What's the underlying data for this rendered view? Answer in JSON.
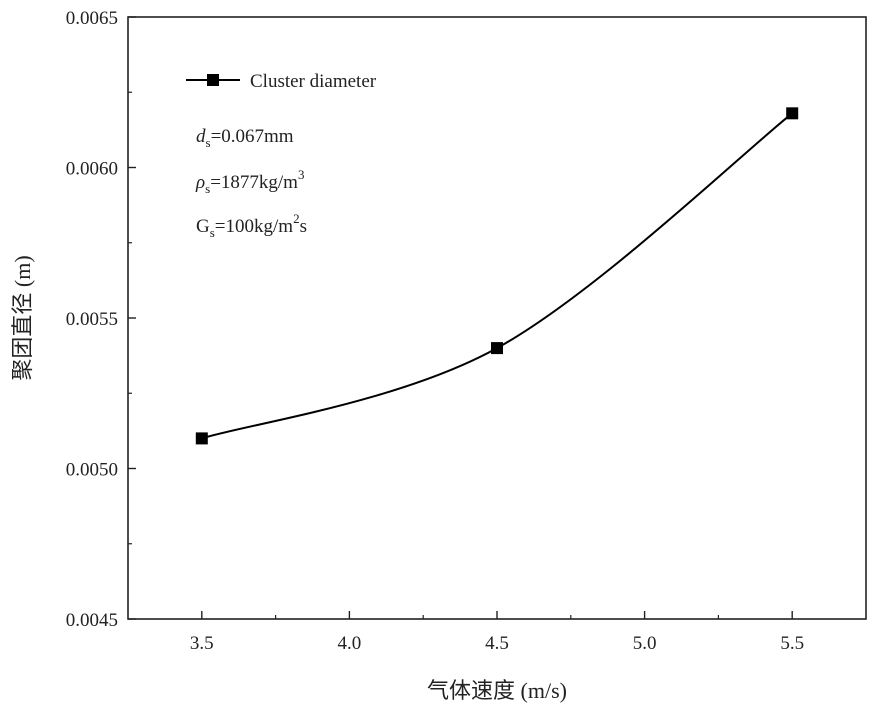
{
  "chart_data": {
    "type": "line",
    "xlabel": "气体速度 (m/s)",
    "ylabel": "聚团直径 (m)",
    "xlim": [
      3.25,
      5.75
    ],
    "ylim": [
      0.0045,
      0.0065
    ],
    "x_ticks": [
      "3.5",
      "4.0",
      "4.5",
      "5.0",
      "5.5"
    ],
    "y_ticks": [
      "0.0045",
      "0.0050",
      "0.0055",
      "0.0060",
      "0.0065"
    ],
    "grid": false,
    "legend_position": "top-left",
    "series": [
      {
        "name": "Cluster diameter",
        "x": [
          3.5,
          4.5,
          5.5
        ],
        "y": [
          0.0051,
          0.0054,
          0.00618
        ],
        "marker": "square",
        "color": "#000000",
        "smooth": true
      }
    ],
    "annotations": [
      {
        "main": "d",
        "sub": "s",
        "rest": "=0.067mm",
        "sup": "",
        "tail": ""
      },
      {
        "main": "ρ",
        "sub": "s",
        "rest": "=1877kg/m",
        "sup": "3",
        "tail": ""
      },
      {
        "main": "G",
        "sub": "s",
        "rest": "=100kg/m",
        "sup": "2",
        "tail": "s"
      }
    ]
  }
}
